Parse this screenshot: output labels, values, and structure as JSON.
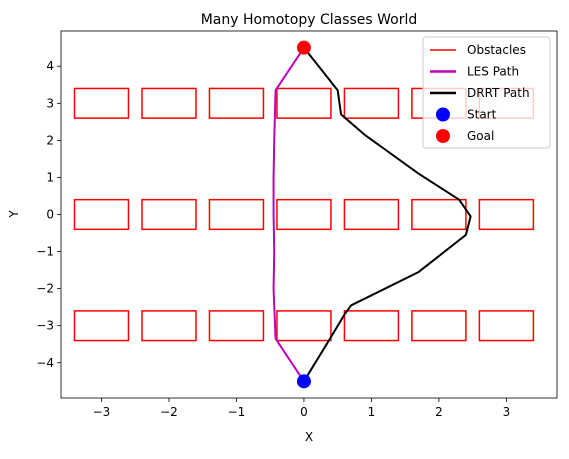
{
  "chart_data": {
    "type": "line",
    "title": "Many Homotopy Classes World",
    "xlabel": "X",
    "ylabel": "Y",
    "xlim": [
      -3.6,
      3.75
    ],
    "ylim": [
      -4.95,
      4.95
    ],
    "xticks": [
      -3,
      -2,
      -1,
      0,
      1,
      2,
      3
    ],
    "xtick_labels": [
      "−3",
      "−2",
      "−1",
      "0",
      "1",
      "2",
      "3"
    ],
    "yticks": [
      -4,
      -3,
      -2,
      -1,
      0,
      1,
      2,
      3,
      4
    ],
    "ytick_labels": [
      "−4",
      "−3",
      "−2",
      "−1",
      "0",
      "1",
      "2",
      "3",
      "4"
    ],
    "grid": false,
    "legend_position": "top-right",
    "legend": [
      "Obstacles",
      "LES Path",
      "DRRT Path",
      "Start",
      "Goal"
    ],
    "colors": {
      "obstacles": "#ff0000",
      "les_path": "#bf00bf",
      "drrt_path": "#000000",
      "start": "#0000ff",
      "goal": "#ff0000"
    },
    "obstacles": [
      {
        "x": -3.4,
        "y": 2.6,
        "w": 0.8,
        "h": 0.8
      },
      {
        "x": -2.4,
        "y": 2.6,
        "w": 0.8,
        "h": 0.8
      },
      {
        "x": -1.4,
        "y": 2.6,
        "w": 0.8,
        "h": 0.8
      },
      {
        "x": -0.4,
        "y": 2.6,
        "w": 0.8,
        "h": 0.8
      },
      {
        "x": 0.6,
        "y": 2.6,
        "w": 0.8,
        "h": 0.8
      },
      {
        "x": 1.6,
        "y": 2.6,
        "w": 0.8,
        "h": 0.8
      },
      {
        "x": 2.6,
        "y": 2.6,
        "w": 0.8,
        "h": 0.8
      },
      {
        "x": -3.4,
        "y": -0.4,
        "w": 0.8,
        "h": 0.8
      },
      {
        "x": -2.4,
        "y": -0.4,
        "w": 0.8,
        "h": 0.8
      },
      {
        "x": -1.4,
        "y": -0.4,
        "w": 0.8,
        "h": 0.8
      },
      {
        "x": -0.4,
        "y": -0.4,
        "w": 0.8,
        "h": 0.8
      },
      {
        "x": 0.6,
        "y": -0.4,
        "w": 0.8,
        "h": 0.8
      },
      {
        "x": 1.6,
        "y": -0.4,
        "w": 0.8,
        "h": 0.8
      },
      {
        "x": 2.6,
        "y": -0.4,
        "w": 0.8,
        "h": 0.8
      },
      {
        "x": -3.4,
        "y": -3.4,
        "w": 0.8,
        "h": 0.8
      },
      {
        "x": -2.4,
        "y": -3.4,
        "w": 0.8,
        "h": 0.8
      },
      {
        "x": -1.4,
        "y": -3.4,
        "w": 0.8,
        "h": 0.8
      },
      {
        "x": -0.4,
        "y": -3.4,
        "w": 0.8,
        "h": 0.8
      },
      {
        "x": 0.6,
        "y": -3.4,
        "w": 0.8,
        "h": 0.8
      },
      {
        "x": 1.6,
        "y": -3.4,
        "w": 0.8,
        "h": 0.8
      },
      {
        "x": 2.6,
        "y": -3.4,
        "w": 0.8,
        "h": 0.8
      }
    ],
    "series": [
      {
        "name": "LES Path",
        "x": [
          0.0,
          -0.42,
          -0.45,
          -0.44,
          -0.45,
          -0.45,
          -0.44,
          -0.42,
          0.0
        ],
        "y": [
          -4.5,
          -3.35,
          -2.0,
          -1.0,
          0.0,
          1.0,
          2.0,
          3.35,
          4.5
        ]
      },
      {
        "name": "DRRT Path",
        "x": [
          0.0,
          0.37,
          0.6,
          0.7,
          1.7,
          2.4,
          2.47,
          2.3,
          1.7,
          0.9,
          0.55,
          0.5,
          0.0
        ],
        "y": [
          -4.5,
          -3.4,
          -2.7,
          -2.45,
          -1.55,
          -0.55,
          -0.05,
          0.4,
          1.1,
          2.15,
          2.7,
          3.35,
          4.5
        ]
      }
    ],
    "points": [
      {
        "name": "Start",
        "x": 0.0,
        "y": -4.5
      },
      {
        "name": "Goal",
        "x": 0.0,
        "y": 4.5
      }
    ]
  }
}
